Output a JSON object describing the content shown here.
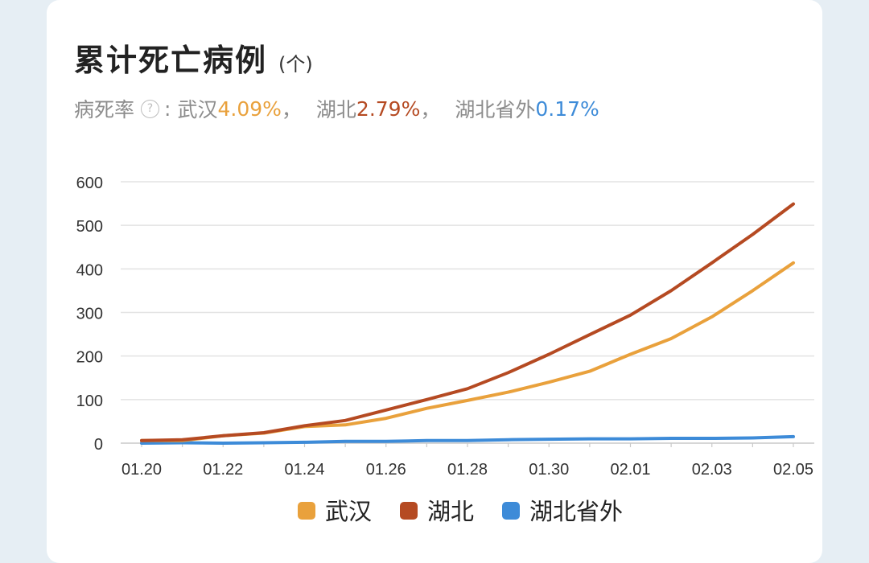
{
  "header": {
    "title": "累计死亡病例",
    "unit": "(个)"
  },
  "rates": {
    "label": "病死率",
    "help_icon": "question-circle-icon",
    "colon": ":",
    "items": [
      {
        "name": "武汉",
        "value": "4.09%",
        "color": "#e9a13c",
        "suffix": "，"
      },
      {
        "name": "湖北",
        "value": "2.79%",
        "color": "#b54a22",
        "suffix": "，"
      },
      {
        "name": "湖北省外",
        "value": "0.17%",
        "color": "#3d8bd8",
        "suffix": ""
      }
    ]
  },
  "chart_data": {
    "type": "line",
    "x": [
      "01.20",
      "01.21",
      "01.22",
      "01.23",
      "01.24",
      "01.25",
      "01.26",
      "01.27",
      "01.28",
      "01.29",
      "01.30",
      "01.31",
      "02.01",
      "02.02",
      "02.03",
      "02.04",
      "02.05"
    ],
    "x_tick_labels": [
      "01.20",
      "01.22",
      "01.24",
      "01.26",
      "01.28",
      "01.30",
      "02.01",
      "02.03",
      "02.05"
    ],
    "ylim": [
      0,
      600
    ],
    "y_ticks": [
      0,
      100,
      200,
      300,
      400,
      500,
      600
    ],
    "grid": true,
    "legend_position": "bottom",
    "series": [
      {
        "name": "武汉",
        "color": "#e9a13c",
        "values": [
          6,
          6,
          17,
          23,
          38,
          42,
          57,
          80,
          98,
          117,
          140,
          165,
          204,
          240,
          290,
          350,
          414
        ]
      },
      {
        "name": "湖北",
        "color": "#b54a22",
        "values": [
          6,
          8,
          17,
          24,
          40,
          52,
          76,
          100,
          125,
          162,
          204,
          249,
          294,
          350,
          414,
          479,
          549
        ]
      },
      {
        "name": "湖北省外",
        "color": "#3d8bd8",
        "values": [
          0,
          1,
          0,
          1,
          2,
          4,
          4,
          6,
          6,
          8,
          9,
          10,
          10,
          11,
          11,
          12,
          15
        ]
      }
    ]
  }
}
